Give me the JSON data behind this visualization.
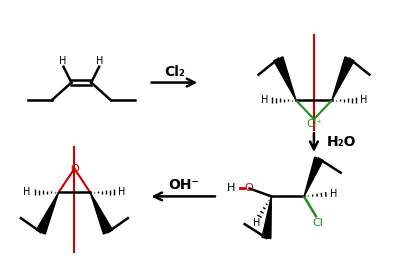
{
  "bg_color": "#ffffff",
  "red_color": "#cc0000",
  "green_color": "#228B22",
  "black": "#000000",
  "label_cl2": "Cl₂",
  "label_h2o": "H₂O",
  "label_oh": "OH⁻",
  "fig_width": 4.2,
  "fig_height": 2.75,
  "dpi": 100
}
